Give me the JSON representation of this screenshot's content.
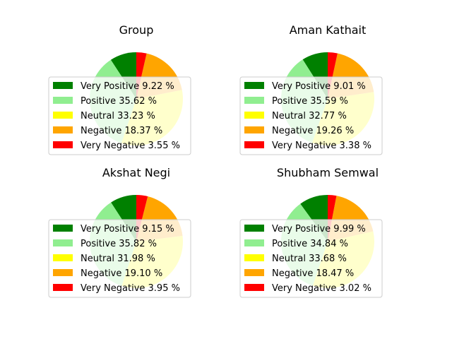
{
  "chart_data": [
    {
      "type": "pie",
      "title": "Group",
      "categories": [
        "Very Positive",
        "Positive",
        "Neutral",
        "Negative",
        "Very Negative"
      ],
      "values": [
        9.22,
        35.62,
        33.23,
        18.37,
        3.55
      ],
      "legend_labels": [
        "Very Positive 9.22 %",
        "Positive 35.62 %",
        "Neutral 33.23 %",
        "Negative 18.37 %",
        "Very Negative 3.55 %"
      ],
      "legend": "center"
    },
    {
      "type": "pie",
      "title": "Aman Kathait",
      "categories": [
        "Very Positive",
        "Positive",
        "Neutral",
        "Negative",
        "Very Negative"
      ],
      "values": [
        9.01,
        35.59,
        32.77,
        19.26,
        3.38
      ],
      "legend_labels": [
        "Very Positive 9.01 %",
        "Positive 35.59 %",
        "Neutral 32.77 %",
        "Negative 19.26 %",
        "Very Negative 3.38 %"
      ],
      "legend": "center"
    },
    {
      "type": "pie",
      "title": "Akshat Negi",
      "categories": [
        "Very Positive",
        "Positive",
        "Neutral",
        "Negative",
        "Very Negative"
      ],
      "values": [
        9.15,
        35.82,
        31.98,
        19.1,
        3.95
      ],
      "legend_labels": [
        "Very Positive 9.15 %",
        "Positive 35.82 %",
        "Neutral 31.98 %",
        "Negative 19.10 %",
        "Very Negative 3.95 %"
      ],
      "legend": "center"
    },
    {
      "type": "pie",
      "title": "Shubham Semwal",
      "categories": [
        "Very Positive",
        "Positive",
        "Neutral",
        "Negative",
        "Very Negative"
      ],
      "values": [
        9.99,
        34.84,
        33.68,
        18.47,
        3.02
      ],
      "legend_labels": [
        "Very Positive 9.99 %",
        "Positive 34.84 %",
        "Neutral 33.68 %",
        "Negative 18.47 %",
        "Very Negative 3.02 %"
      ],
      "legend": "center"
    }
  ],
  "colors": [
    "#008000",
    "#90ee90",
    "#ffff00",
    "#ffa500",
    "#ff0000"
  ]
}
